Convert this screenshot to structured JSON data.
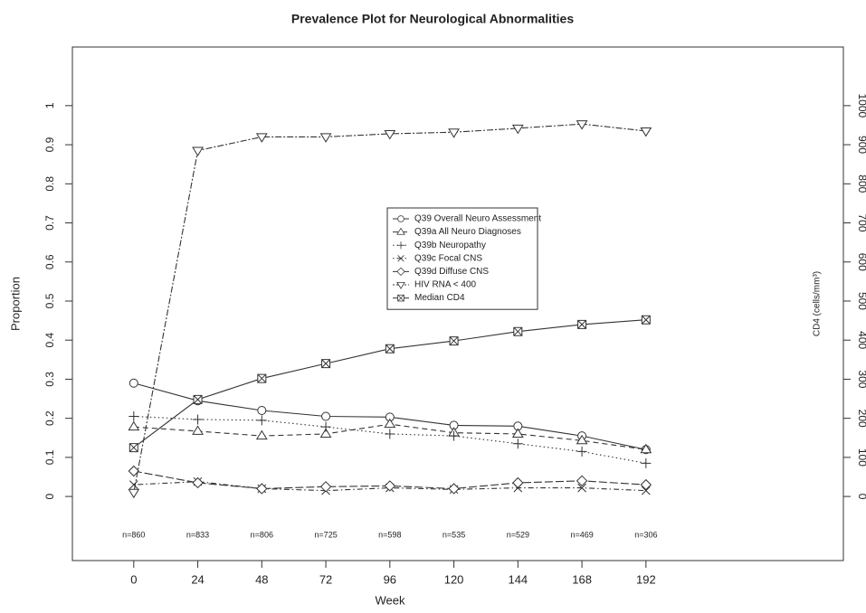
{
  "chart_data": {
    "type": "line",
    "title": "Prevalence Plot for Neurological Abnormalities",
    "x_label": "Week",
    "y_label": "Proportion",
    "y2_label": "CD4 (cells/mm³)",
    "x": [
      0,
      24,
      48,
      72,
      96,
      120,
      144,
      168,
      192
    ],
    "n_labels": [
      "n=860",
      "n=833",
      "n=806",
      "n=725",
      "n=598",
      "n=535",
      "n=529",
      "n=469",
      "n=306"
    ],
    "xlim": [
      -23,
      266
    ],
    "xticks": [
      0,
      24,
      48,
      72,
      96,
      120,
      144,
      168,
      192
    ],
    "ylim": [
      -0.164,
      1.15
    ],
    "yticks": [
      0,
      0.1,
      0.2,
      0.3,
      0.4,
      0.5,
      0.6,
      0.7,
      0.8,
      0.9,
      1
    ],
    "y2lim": [
      -164,
      1150
    ],
    "y2ticks": [
      0,
      100,
      200,
      300,
      400,
      500,
      600,
      700,
      800,
      900,
      1000
    ],
    "legend": "center",
    "series": [
      {
        "name": "Q39 Overall Neuro Assessment",
        "color": "#333333",
        "dash": "solid",
        "marker": "circle",
        "values": [
          0.29,
          0.245,
          0.22,
          0.205,
          0.203,
          0.182,
          0.18,
          0.155,
          0.12
        ]
      },
      {
        "name": "Q39a All Neuro Diagnoses",
        "color": "#333333",
        "dash": "dashed",
        "marker": "triangle",
        "values": [
          0.178,
          0.167,
          0.155,
          0.16,
          0.185,
          0.163,
          0.16,
          0.143,
          0.12
        ]
      },
      {
        "name": "Q39b Neuropathy",
        "color": "#333333",
        "dash": "dotted",
        "marker": "plus",
        "values": [
          0.205,
          0.197,
          0.195,
          0.178,
          0.16,
          0.155,
          0.135,
          0.115,
          0.085
        ]
      },
      {
        "name": "Q39c Focal CNS",
        "color": "#333333",
        "dash": "dotdash",
        "marker": "cross",
        "values": [
          0.03,
          0.038,
          0.02,
          0.015,
          0.022,
          0.018,
          0.022,
          0.022,
          0.015
        ]
      },
      {
        "name": "Q39d Diffuse CNS",
        "color": "#333333",
        "dash": "longdash",
        "marker": "diamond",
        "values": [
          0.065,
          0.035,
          0.02,
          0.025,
          0.027,
          0.02,
          0.035,
          0.04,
          0.03
        ]
      },
      {
        "name": "HIV RNA < 400",
        "color": "#333333",
        "dash": "twodash",
        "marker": "down-triangle",
        "values": [
          0.01,
          0.885,
          0.92,
          0.92,
          0.928,
          0.932,
          0.942,
          0.953,
          0.935
        ]
      },
      {
        "name": "Median CD4",
        "color": "#333333",
        "dash": "solid",
        "marker": "boxed-cross",
        "axis": "y2",
        "values": [
          125,
          248,
          302,
          340,
          378,
          398,
          422,
          440,
          452
        ]
      }
    ]
  }
}
